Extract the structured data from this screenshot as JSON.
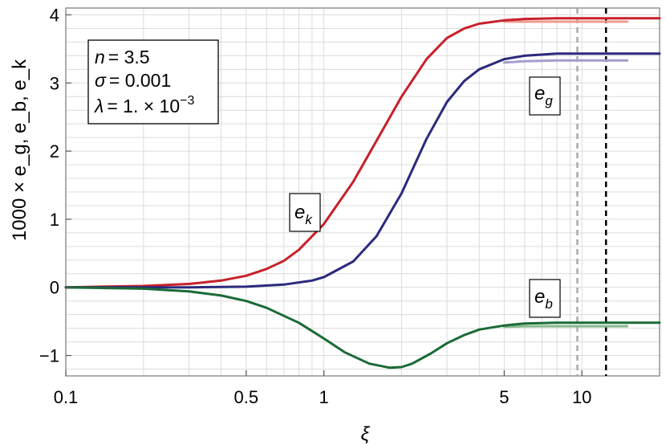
{
  "chart_data": {
    "type": "line",
    "xscale": "log",
    "xlim": [
      0.1,
      20
    ],
    "ylim": [
      -1.3,
      4.1
    ],
    "xlabel": "ξ",
    "ylabel": "1000 × e_g, e_b, e_k",
    "x_ticks": [
      {
        "value": 0.1,
        "label": "0.1"
      },
      {
        "value": 0.5,
        "label": "0.5"
      },
      {
        "value": 1,
        "label": "1"
      },
      {
        "value": 5,
        "label": "5"
      },
      {
        "value": 10,
        "label": "10"
      }
    ],
    "y_ticks": [
      {
        "value": -1,
        "label": "−1"
      },
      {
        "value": 0,
        "label": "0"
      },
      {
        "value": 1,
        "label": "1"
      },
      {
        "value": 2,
        "label": "2"
      },
      {
        "value": 3,
        "label": "3"
      },
      {
        "value": 4,
        "label": "4"
      }
    ],
    "grid": true,
    "params_box": {
      "line1_var": "n",
      "line1_val": "= 3.5",
      "line2_var": "σ",
      "line2_val": "= 0.001",
      "line3_var": "λ",
      "line3_val": "= 1. × 10",
      "line3_exp": "−3"
    },
    "curve_labels": {
      "ek": {
        "main": "e",
        "sub": "k"
      },
      "eg": {
        "main": "e",
        "sub": "g"
      },
      "eb": {
        "main": "e",
        "sub": "b"
      }
    },
    "vlines": [
      {
        "x": 9.6,
        "style": "dashed",
        "color": "#aaaaaa"
      },
      {
        "x": 12.4,
        "style": "dashed",
        "color": "#000000"
      }
    ],
    "series": [
      {
        "id": "ek",
        "color": "#c8202a",
        "x": [
          0.1,
          0.2,
          0.3,
          0.4,
          0.5,
          0.6,
          0.7,
          0.8,
          1.0,
          1.3,
          1.6,
          2.0,
          2.5,
          3.0,
          3.5,
          4.0,
          5.0,
          6.0,
          8.0,
          10.0,
          13.0,
          20.0
        ],
        "y": [
          0.0,
          0.02,
          0.05,
          0.1,
          0.17,
          0.27,
          0.39,
          0.55,
          0.93,
          1.55,
          2.15,
          2.8,
          3.35,
          3.66,
          3.8,
          3.87,
          3.92,
          3.94,
          3.95,
          3.95,
          3.95,
          3.95
        ]
      },
      {
        "id": "ek-approx",
        "color": "#ef9b8e",
        "x": [
          5.0,
          6.0,
          8.0,
          10.0,
          13.0,
          15.0
        ],
        "y": [
          3.9,
          3.9,
          3.9,
          3.9,
          3.9,
          3.9
        ]
      },
      {
        "id": "eg",
        "color": "#2a2a7e",
        "x": [
          0.1,
          0.3,
          0.5,
          0.7,
          0.9,
          1.0,
          1.3,
          1.6,
          2.0,
          2.5,
          3.0,
          3.5,
          4.0,
          5.0,
          6.0,
          8.0,
          10.0,
          13.0,
          20.0
        ],
        "y": [
          0.0,
          0.0,
          0.01,
          0.04,
          0.1,
          0.15,
          0.38,
          0.75,
          1.38,
          2.18,
          2.72,
          3.03,
          3.2,
          3.35,
          3.4,
          3.43,
          3.43,
          3.43,
          3.43
        ]
      },
      {
        "id": "eg-approx",
        "color": "#a49ecd",
        "x": [
          5.0,
          6.0,
          8.0,
          10.0,
          13.0,
          15.0
        ],
        "y": [
          3.3,
          3.32,
          3.33,
          3.33,
          3.33,
          3.33
        ]
      },
      {
        "id": "eb",
        "color": "#1a6a35",
        "x": [
          0.1,
          0.2,
          0.3,
          0.4,
          0.5,
          0.6,
          0.8,
          1.0,
          1.2,
          1.5,
          1.8,
          2.0,
          2.2,
          2.6,
          3.0,
          3.5,
          4.0,
          5.0,
          6.0,
          8.0,
          10.0,
          13.0,
          20.0
        ],
        "y": [
          0.0,
          -0.02,
          -0.06,
          -0.12,
          -0.2,
          -0.3,
          -0.52,
          -0.75,
          -0.95,
          -1.12,
          -1.18,
          -1.17,
          -1.12,
          -0.97,
          -0.82,
          -0.7,
          -0.62,
          -0.56,
          -0.53,
          -0.52,
          -0.52,
          -0.52,
          -0.52
        ]
      },
      {
        "id": "eb-approx",
        "color": "#87b98f",
        "x": [
          5.0,
          6.0,
          8.0,
          10.0,
          13.0,
          15.0
        ],
        "y": [
          -0.58,
          -0.57,
          -0.57,
          -0.57,
          -0.57,
          -0.57
        ]
      }
    ]
  }
}
